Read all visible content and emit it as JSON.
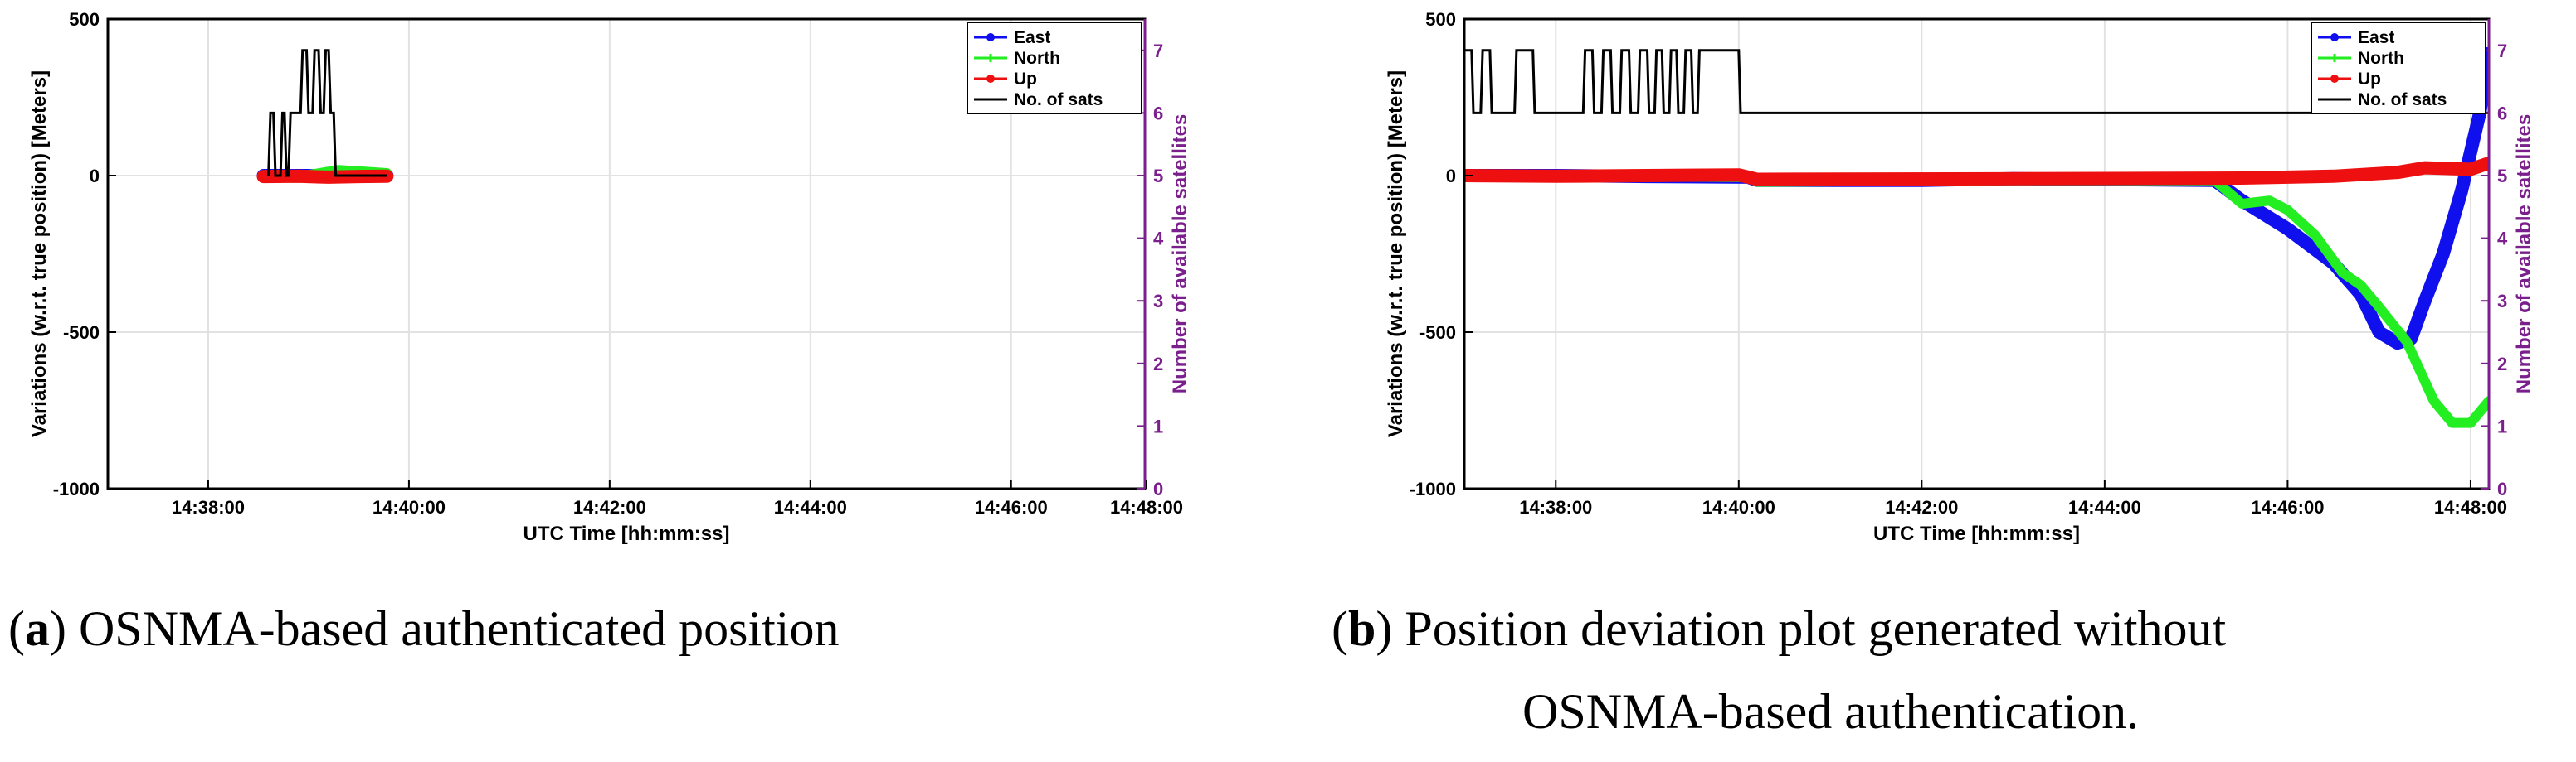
{
  "captions": [
    {
      "letter": "a",
      "open": "(",
      "close": ")",
      "line1": "OSNMA-based authenticated position",
      "line2": ""
    },
    {
      "letter": "b",
      "open": "(",
      "close": ")",
      "line1": "Position deviation plot generated without",
      "line2": "OSNMA-based authentication."
    }
  ],
  "chart_data": [
    {
      "type": "line",
      "xlabel": "UTC Time [hh:mm:ss]",
      "ylabel": "Variations (w.r.t. true position) [Meters]",
      "y2label": "Number of available satellites",
      "xlim": [
        0,
        10.333
      ],
      "x_units": "minutes since 14:37:00",
      "xticks": [
        1,
        3,
        5,
        7,
        9,
        11
      ],
      "xticklabels": [
        "14:38:00",
        "14:40:00",
        "14:42:00",
        "14:44:00",
        "14:46:00",
        "14:48:00"
      ],
      "ylim": [
        -1000,
        500
      ],
      "yticks": [
        500,
        0,
        -500,
        -1000
      ],
      "yticklabels": [
        "500",
        "0",
        "-500",
        "-1000"
      ],
      "y2lim": [
        0,
        7.5
      ],
      "y2ticks": [
        0,
        1,
        2,
        3,
        4,
        5,
        6,
        7
      ],
      "y2ticklabels": [
        "0",
        "1",
        "2",
        "3",
        "4",
        "5",
        "6",
        "7"
      ],
      "grid": true,
      "legend_position": "top-right",
      "series": [
        {
          "name": "East",
          "color": "#1010ee",
          "axis": "left",
          "marker": "dot",
          "x": [
            1.55,
            2.0,
            2.5,
            2.78
          ],
          "y": [
            0,
            0,
            -2,
            0
          ]
        },
        {
          "name": "North",
          "color": "#22ee22",
          "axis": "left",
          "marker": "plus",
          "x": [
            1.55,
            2.0,
            2.3,
            2.5,
            2.78
          ],
          "y": [
            0,
            2,
            18,
            14,
            8
          ]
        },
        {
          "name": "Up",
          "color": "#ee1010",
          "axis": "left",
          "marker": "dot",
          "x": [
            1.55,
            1.9,
            2.2,
            2.5,
            2.78
          ],
          "y": [
            -3,
            -2,
            -5,
            -3,
            -2
          ]
        },
        {
          "name": "No. of sats",
          "color": "#000000",
          "axis": "right",
          "marker": "none",
          "x": [
            1.6,
            1.62,
            1.65,
            1.67,
            1.72,
            1.74,
            1.76,
            1.78,
            1.8,
            1.82,
            1.92,
            1.94,
            1.98,
            2.0,
            2.04,
            2.06,
            2.1,
            2.12,
            2.15,
            2.17,
            2.2,
            2.22,
            2.25,
            2.27,
            2.5,
            2.52,
            2.78
          ],
          "y": [
            5,
            6,
            6,
            5,
            5,
            6,
            6,
            5,
            5,
            6,
            6,
            7,
            7,
            6,
            6,
            7,
            7,
            6,
            6,
            7,
            7,
            6,
            6,
            5,
            5,
            5,
            5
          ]
        }
      ]
    },
    {
      "type": "line",
      "xlabel": "UTC Time [hh:mm:ss]",
      "ylabel": "Variations (w.r.t. true position) [Meters]",
      "y2label": "Number of available satellites",
      "xlim": [
        0,
        11.2
      ],
      "x_units": "minutes since 14:37:00",
      "xticks": [
        1,
        3,
        5,
        7,
        9,
        11
      ],
      "xticklabels": [
        "14:38:00",
        "14:40:00",
        "14:42:00",
        "14:44:00",
        "14:46:00",
        "14:48:00"
      ],
      "ylim": [
        -1000,
        500
      ],
      "yticks": [
        500,
        0,
        -500,
        -1000
      ],
      "yticklabels": [
        "500",
        "0",
        "-500",
        "-1000"
      ],
      "y2lim": [
        0,
        7.5
      ],
      "y2ticks": [
        0,
        1,
        2,
        3,
        4,
        5,
        6,
        7
      ],
      "y2ticklabels": [
        "0",
        "1",
        "2",
        "3",
        "4",
        "5",
        "6",
        "7"
      ],
      "grid": true,
      "legend_position": "top-right",
      "series": [
        {
          "name": "East",
          "color": "#1010ee",
          "axis": "left",
          "marker": "dot",
          "x": [
            0,
            1,
            2,
            3.1,
            3.2,
            5,
            6,
            8.2,
            8.5,
            9.0,
            9.5,
            9.8,
            10.0,
            10.2,
            10.35,
            10.5,
            10.7,
            10.9,
            11.1,
            11.2
          ],
          "y": [
            0,
            0,
            -3,
            -5,
            -15,
            -15,
            -10,
            -15,
            -80,
            -170,
            -280,
            -380,
            -500,
            -535,
            -520,
            -400,
            -250,
            -50,
            200,
            390
          ]
        },
        {
          "name": "North",
          "color": "#22ee22",
          "axis": "left",
          "marker": "plus",
          "x": [
            0,
            3.1,
            3.2,
            6,
            8.2,
            8.5,
            8.8,
            9.0,
            9.3,
            9.6,
            9.8,
            10.0,
            10.3,
            10.6,
            10.8,
            11.0,
            11.2
          ],
          "y": [
            0,
            -5,
            -20,
            -15,
            -15,
            -90,
            -80,
            -110,
            -190,
            -310,
            -350,
            -420,
            -530,
            -720,
            -790,
            -790,
            -720
          ]
        },
        {
          "name": "Up",
          "color": "#ee1010",
          "axis": "left",
          "marker": "dot",
          "x": [
            0,
            1,
            3.0,
            3.2,
            6,
            8.5,
            9.5,
            10.2,
            10.5,
            11.0,
            11.2
          ],
          "y": [
            0,
            -2,
            2,
            -12,
            -10,
            -8,
            -2,
            10,
            25,
            20,
            40
          ]
        },
        {
          "name": "No. of sats",
          "color": "#000000",
          "axis": "right",
          "marker": "none",
          "x": [
            0,
            0.08,
            0.1,
            0.18,
            0.2,
            0.28,
            0.3,
            0.55,
            0.57,
            0.75,
            0.77,
            1.3,
            1.32,
            1.4,
            1.42,
            1.5,
            1.52,
            1.6,
            1.62,
            1.7,
            1.72,
            1.8,
            1.82,
            1.9,
            1.92,
            2.0,
            2.02,
            2.08,
            2.1,
            2.16,
            2.18,
            2.24,
            2.26,
            2.32,
            2.34,
            2.4,
            2.42,
            2.48,
            2.5,
            2.55,
            2.57,
            3.0,
            3.02,
            3.15,
            3.17,
            11.2
          ],
          "y": [
            7,
            7,
            6,
            6,
            7,
            7,
            6,
            6,
            7,
            7,
            6,
            6,
            7,
            7,
            6,
            6,
            7,
            7,
            6,
            6,
            7,
            7,
            6,
            6,
            7,
            7,
            6,
            6,
            7,
            7,
            6,
            6,
            7,
            7,
            6,
            6,
            7,
            7,
            6,
            6,
            7,
            7,
            6,
            6,
            6,
            6
          ]
        }
      ]
    }
  ]
}
